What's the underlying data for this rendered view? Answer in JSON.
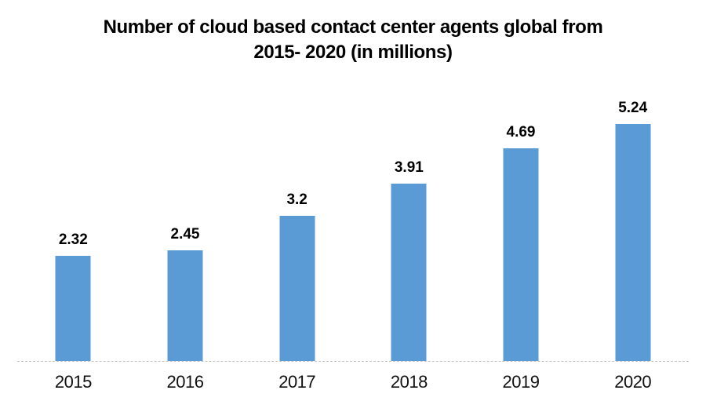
{
  "chart_data": {
    "type": "bar",
    "title": "Number of cloud based contact center agents global from 2015- 2020 (in millions)",
    "title_line1": "Number of cloud based contact center agents global from",
    "title_line2": "2015- 2020 (in millions)",
    "categories": [
      "2015",
      "2016",
      "2017",
      "2018",
      "2019",
      "2020"
    ],
    "values": [
      2.32,
      2.45,
      3.2,
      3.91,
      4.69,
      5.24
    ],
    "data_labels": [
      "2.32",
      "2.45",
      "3.2",
      "3.91",
      "4.69",
      "5.24"
    ],
    "xlabel": "",
    "ylabel": "",
    "ylim": [
      0,
      6.1
    ],
    "grid": false,
    "legend": false,
    "y_axis_visible": false,
    "bar_color": "#5B9BD5",
    "baseline_color": "#c3c3c3",
    "text_color": "#000000"
  }
}
